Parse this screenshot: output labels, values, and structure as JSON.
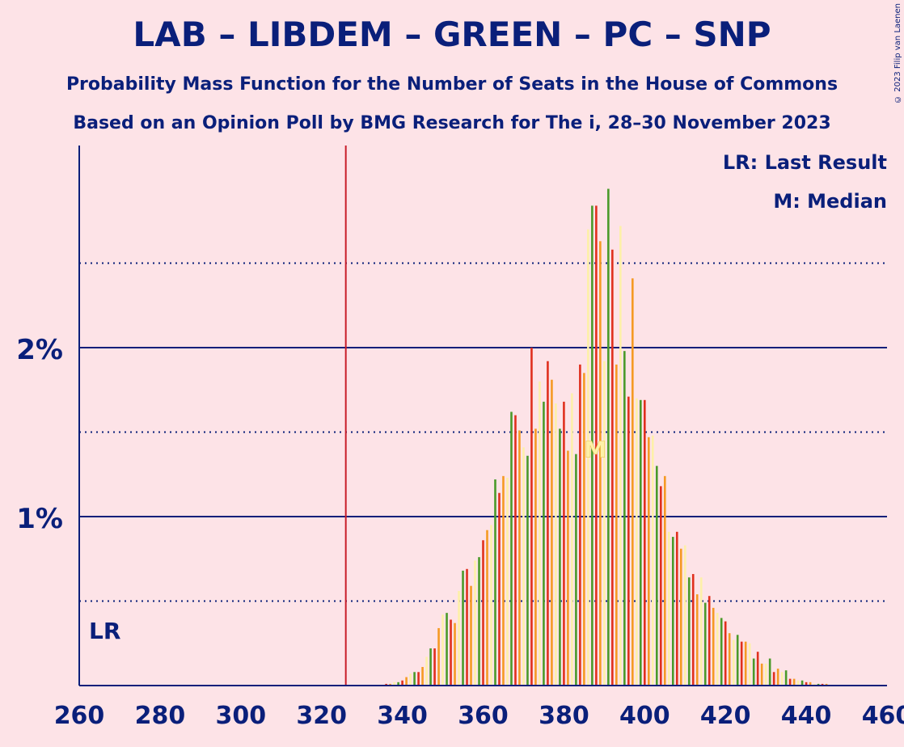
{
  "title": "LAB – LIBDEM – GREEN – PC – SNP",
  "subtitle_1": "Probability Mass Function for the Number of Seats in the House of Commons",
  "subtitle_2": "Based on an Opinion Poll by BMG Research for The i, 28–30 November 2023",
  "copyright": "© 2023 Filip van Laenen",
  "legend": {
    "last_result": "LR: Last Result",
    "median": "M: Median"
  },
  "markers": {
    "last_result_label": "LR",
    "last_result_seats": 326,
    "median_label": "M",
    "median_seats": 389
  },
  "colors": {
    "background": "#fde3e7",
    "axis": "#0a1f7a",
    "last_result_line": "#c81d2a",
    "bar_palette": [
      "#e0301e",
      "#f59a23",
      "#fdf0a8",
      "#4a9a2a"
    ]
  },
  "chart_data": {
    "type": "bar",
    "xlim": [
      260,
      460
    ],
    "ylim": [
      0,
      0.035
    ],
    "x_ticks": [
      260,
      280,
      300,
      320,
      340,
      360,
      380,
      400,
      420,
      440,
      460
    ],
    "x_tick_labels": [
      "260",
      "280",
      "300",
      "320",
      "340",
      "360",
      "380",
      "400",
      "420",
      "440",
      "460"
    ],
    "y_ticks_major": [
      0.01,
      0.02
    ],
    "y_tick_labels": [
      "1%",
      "2%"
    ],
    "y_gridlines_dotted": [
      0.005,
      0.015,
      0.025
    ],
    "x": [
      336,
      337,
      338,
      339,
      340,
      341,
      342,
      343,
      344,
      345,
      346,
      347,
      348,
      349,
      350,
      351,
      352,
      353,
      354,
      355,
      356,
      357,
      358,
      359,
      360,
      361,
      362,
      363,
      364,
      365,
      366,
      367,
      368,
      369,
      370,
      371,
      372,
      373,
      374,
      375,
      376,
      377,
      378,
      379,
      380,
      381,
      382,
      383,
      384,
      385,
      386,
      387,
      388,
      389,
      390,
      391,
      392,
      393,
      394,
      395,
      396,
      397,
      398,
      399,
      400,
      401,
      402,
      403,
      404,
      405,
      406,
      407,
      408,
      409,
      410,
      411,
      412,
      413,
      414,
      415,
      416,
      417,
      418,
      419,
      420,
      421,
      422,
      423,
      424,
      425,
      426,
      427,
      428,
      429,
      430,
      431,
      432,
      433,
      434,
      435,
      436,
      437,
      438,
      439,
      440,
      441,
      442,
      443,
      444,
      445
    ],
    "values": [
      0.0001,
      0.0001,
      0.0002,
      0.0002,
      0.0003,
      0.0005,
      0.0007,
      0.0008,
      0.0008,
      0.0011,
      0.0017,
      0.0022,
      0.0022,
      0.0034,
      0.0042,
      0.0043,
      0.0039,
      0.0037,
      0.0056,
      0.0068,
      0.0069,
      0.0059,
      0.0074,
      0.0076,
      0.0086,
      0.0092,
      0.0095,
      0.0122,
      0.0114,
      0.0124,
      0.0123,
      0.0162,
      0.016,
      0.0151,
      0.0141,
      0.0136,
      0.02,
      0.0152,
      0.018,
      0.0168,
      0.0192,
      0.0181,
      0.0167,
      0.0152,
      0.0168,
      0.0139,
      0.0173,
      0.0137,
      0.019,
      0.0185,
      0.027,
      0.0284,
      0.0284,
      0.0263,
      0.0192,
      0.0294,
      0.0258,
      0.019,
      0.0272,
      0.0198,
      0.0171,
      0.0241,
      0.017,
      0.0169,
      0.0169,
      0.0147,
      0.0148,
      0.013,
      0.0118,
      0.0124,
      0.0091,
      0.0088,
      0.0091,
      0.0081,
      0.0083,
      0.0064,
      0.0066,
      0.0054,
      0.0064,
      0.0049,
      0.0053,
      0.0046,
      0.0043,
      0.004,
      0.0038,
      0.0031,
      0.0027,
      0.003,
      0.0026,
      0.0026,
      0.0025,
      0.0016,
      0.002,
      0.0013,
      0.0013,
      0.0016,
      0.0008,
      0.001,
      0.0008,
      0.0009,
      0.0004,
      0.0004,
      0.0003,
      0.0003,
      0.0002,
      0.0002,
      0.0001,
      0.0001,
      0.0001,
      0.0001
    ]
  }
}
